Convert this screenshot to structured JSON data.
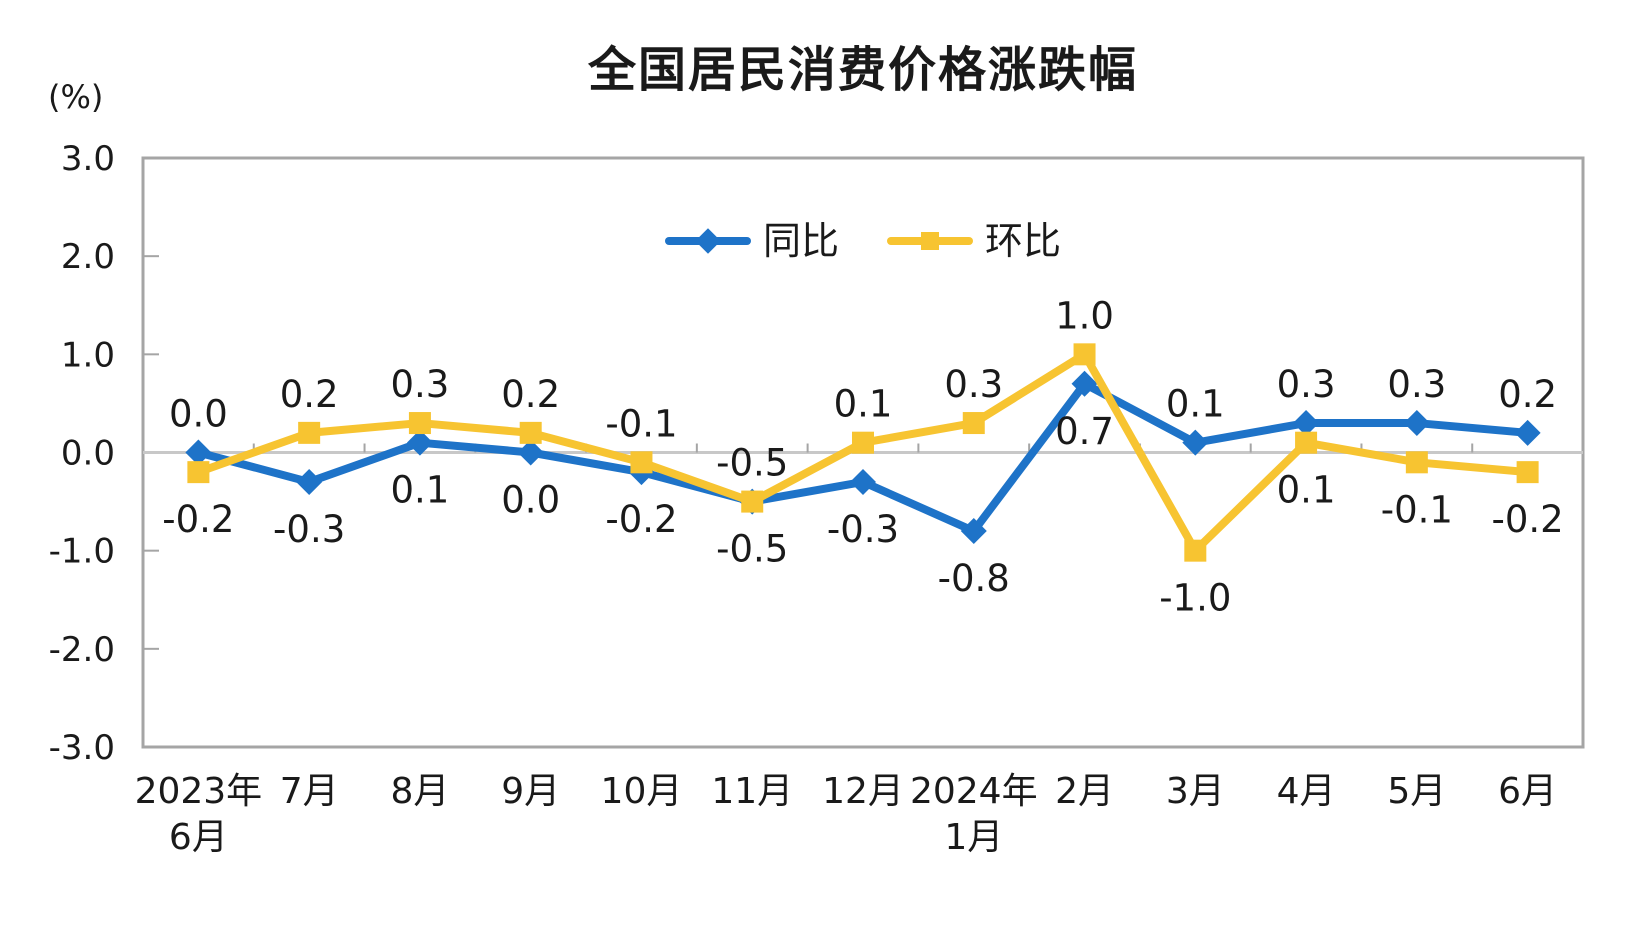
{
  "chart_data": {
    "type": "line",
    "title": "全国居民消费价格涨跌幅",
    "y_axis_unit": "(%)",
    "categories": [
      [
        "2023年",
        "6月"
      ],
      [
        "7月"
      ],
      [
        "8月"
      ],
      [
        "9月"
      ],
      [
        "10月"
      ],
      [
        "11月"
      ],
      [
        "12月"
      ],
      [
        "2024年",
        "1月"
      ],
      [
        "2月"
      ],
      [
        "3月"
      ],
      [
        "4月"
      ],
      [
        "5月"
      ],
      [
        "6月"
      ]
    ],
    "ylim": [
      -3.0,
      3.0
    ],
    "y_tick_labels": [
      "3.0",
      "2.0",
      "1.0",
      "0.0",
      "-1.0",
      "-2.0",
      "-3.0"
    ],
    "y_tick_values": [
      3,
      2,
      1,
      0,
      -1,
      -2,
      -3
    ],
    "grid": "zero-baseline-only",
    "legend_position": "top-center-inside-plot",
    "series": [
      {
        "name": "同比",
        "marker": "diamond",
        "color": "#1E73C8",
        "values": [
          0.0,
          -0.3,
          0.1,
          0.0,
          -0.2,
          -0.5,
          -0.3,
          -0.8,
          0.7,
          0.1,
          0.3,
          0.3,
          0.2
        ],
        "data_labels": [
          "0.0",
          "-0.3",
          "0.1",
          "0.0",
          "-0.2",
          "-0.5",
          "-0.3",
          "-0.8",
          "0.7",
          "0.1",
          "0.3",
          "0.3",
          "0.2"
        ],
        "label_side": [
          "above",
          "below",
          "below",
          "below",
          "below",
          "below",
          "below",
          "below",
          "below",
          "above",
          "above",
          "above",
          "above"
        ]
      },
      {
        "name": "环比",
        "marker": "square",
        "color": "#F7C431",
        "values": [
          -0.2,
          0.2,
          0.3,
          0.2,
          -0.1,
          -0.5,
          0.1,
          0.3,
          1.0,
          -1.0,
          0.1,
          -0.1,
          -0.2
        ],
        "data_labels": [
          "-0.2",
          "0.2",
          "0.3",
          "0.2",
          "-0.1",
          "-0.5",
          "0.1",
          "0.3",
          "1.0",
          "-1.0",
          "0.1",
          "-0.1",
          "-0.2"
        ],
        "label_side": [
          "below",
          "above",
          "above",
          "above",
          "above",
          "above",
          "above",
          "above",
          "above",
          "below",
          "below",
          "below",
          "below"
        ]
      }
    ],
    "colors": {
      "axis_frame": "#A5A5A5",
      "zero_line": "#C8C8C8",
      "text": "#1A1A1A",
      "background": "#FFFFFF"
    }
  }
}
